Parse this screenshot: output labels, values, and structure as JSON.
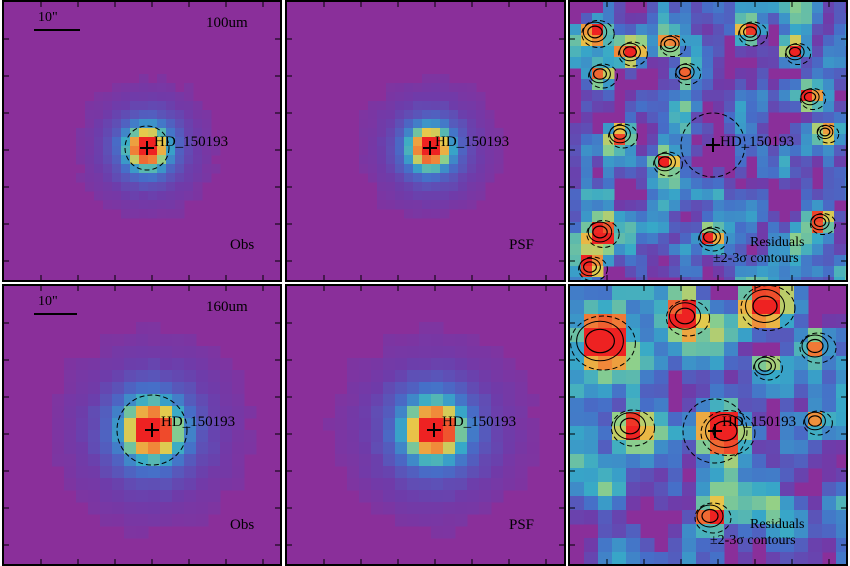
{
  "figure": {
    "rows": [
      {
        "band": "100um",
        "scale_label": "10\"",
        "panels": [
          {
            "kind": "obs",
            "label": "Obs",
            "target": "HD_150193"
          },
          {
            "kind": "psf",
            "label": "PSF",
            "target": "HD_150193"
          },
          {
            "kind": "residual",
            "target": "HD_150193",
            "label_line1": "Residuals",
            "label_line2": "±2-3σ contours"
          }
        ]
      },
      {
        "band": "160um",
        "scale_label": "10\"",
        "panels": [
          {
            "kind": "obs",
            "label": "Obs",
            "target": "HD_150193"
          },
          {
            "kind": "psf",
            "label": "PSF",
            "target": "HD_150193"
          },
          {
            "kind": "residual",
            "target": "HD_150193",
            "label_line1": "Residuals",
            "label_line2": "±2-3σ contours"
          }
        ]
      }
    ],
    "colors": {
      "background": "#8a2f9a",
      "halo": "#6a3aa8",
      "cyan": "#37a9c8",
      "green": "#8fd08a",
      "yellow": "#e8c94a",
      "orange": "#f08a3a",
      "red": "#ee2222"
    }
  }
}
